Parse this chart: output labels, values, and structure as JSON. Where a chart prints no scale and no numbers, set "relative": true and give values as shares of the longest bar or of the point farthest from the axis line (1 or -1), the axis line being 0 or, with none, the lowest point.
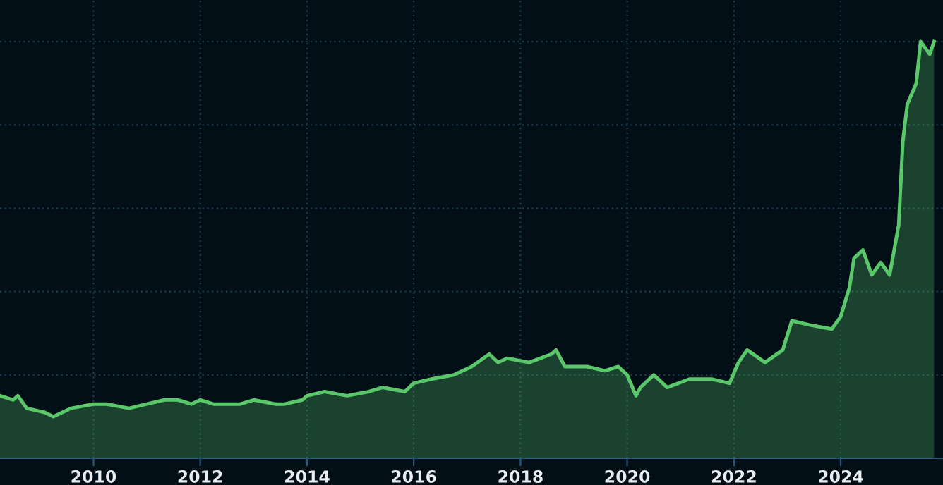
{
  "chart_data": {
    "type": "area",
    "relative": true,
    "x": [
      "2008-04",
      "2008-07",
      "2008-08",
      "2008-10",
      "2009-02",
      "2009-04",
      "2009-08",
      "2010-01",
      "2010-04",
      "2010-09",
      "2011-01",
      "2011-05",
      "2011-08",
      "2011-11",
      "2012-01",
      "2012-04",
      "2012-10",
      "2013-01",
      "2013-06",
      "2013-08",
      "2013-12",
      "2014-01",
      "2014-05",
      "2014-10",
      "2015-03",
      "2015-06",
      "2015-11",
      "2016-01",
      "2016-05",
      "2016-10",
      "2017-02",
      "2017-06",
      "2017-08",
      "2017-10",
      "2018-03",
      "2018-08",
      "2018-09",
      "2018-11",
      "2019-04",
      "2019-08",
      "2019-11",
      "2020-01",
      "2020-03",
      "2020-04",
      "2020-07",
      "2020-10",
      "2021-03",
      "2021-08",
      "2021-12",
      "2022-02",
      "2022-04",
      "2022-08",
      "2022-12",
      "2023-02",
      "2023-06",
      "2023-11",
      "2024-01",
      "2024-03",
      "2024-04",
      "2024-06",
      "2024-07",
      "2024-08",
      "2024-10",
      "2024-12",
      "2025-02",
      "2025-03",
      "2025-04",
      "2025-06",
      "2025-07",
      "2025-09",
      "2025-10"
    ],
    "series": [
      {
        "color": "#5ac86a",
        "values": [
          0.15,
          0.14,
          0.15,
          0.12,
          0.11,
          0.1,
          0.12,
          0.13,
          0.13,
          0.12,
          0.13,
          0.14,
          0.14,
          0.13,
          0.14,
          0.13,
          0.13,
          0.14,
          0.13,
          0.13,
          0.14,
          0.15,
          0.16,
          0.15,
          0.16,
          0.17,
          0.16,
          0.18,
          0.19,
          0.2,
          0.22,
          0.25,
          0.23,
          0.24,
          0.23,
          0.25,
          0.26,
          0.22,
          0.22,
          0.21,
          0.22,
          0.2,
          0.15,
          0.17,
          0.2,
          0.17,
          0.19,
          0.19,
          0.18,
          0.23,
          0.26,
          0.23,
          0.26,
          0.33,
          0.32,
          0.31,
          0.34,
          0.41,
          0.48,
          0.5,
          0.47,
          0.44,
          0.47,
          0.44,
          0.56,
          0.76,
          0.85,
          0.9,
          1.0,
          0.97,
          1.0
        ]
      }
    ],
    "xlim": [
      "2008-04",
      "2025-12"
    ],
    "xticks": [
      "2010",
      "2012",
      "2014",
      "2016",
      "2018",
      "2020",
      "2022",
      "2024"
    ],
    "grid": true
  }
}
